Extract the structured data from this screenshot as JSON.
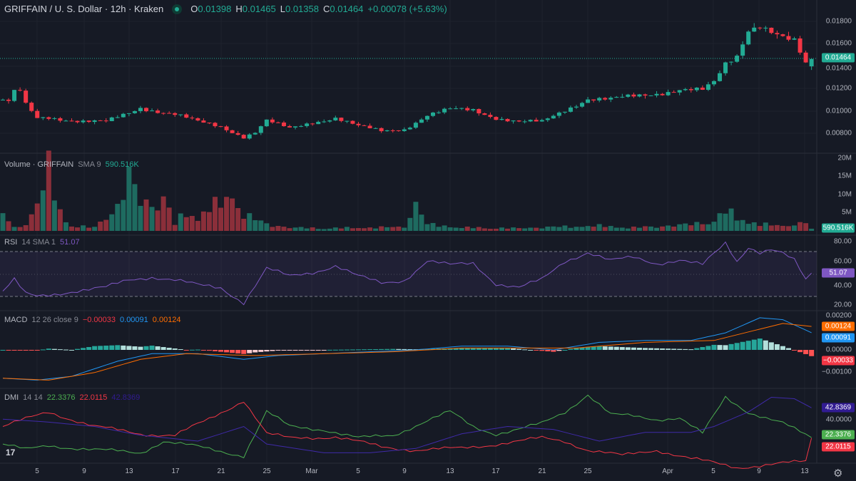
{
  "header": {
    "symbol": "GRIFFAIN / U. S. Dollar · 12h · Kraken",
    "o_label": "O",
    "o": "0.01398",
    "h_label": "H",
    "h": "0.01465",
    "l_label": "L",
    "l": "0.01358",
    "c_label": "C",
    "c": "0.01464",
    "change": "+0.00078 (+5.63%)"
  },
  "volume": {
    "name": "Volume · GRIFFAIN",
    "sma": "SMA 9",
    "value": "590.516K",
    "axis": [
      "20M",
      "15M",
      "10M",
      "5M"
    ]
  },
  "rsi": {
    "name": "RSI",
    "params": "14 SMA 1",
    "value": "51.07",
    "axis": [
      "80.00",
      "60.00",
      "40.00",
      "20.00"
    ]
  },
  "macd": {
    "name": "MACD",
    "params": "12 26 close 9",
    "hist": "−0.00033",
    "macd": "0.00091",
    "signal": "0.00124",
    "axis": [
      "0.00200",
      "0.00000",
      "−0.00100"
    ]
  },
  "dmi": {
    "name": "DMI",
    "params": "14 14",
    "plus": "22.3376",
    "minus": "22.0115",
    "adx": "42.8369",
    "axis": [
      "40.0000"
    ]
  },
  "price_axis": [
    "0.01800",
    "0.01600",
    "0.01400",
    "0.01200",
    "0.01000",
    "0.00800"
  ],
  "current_price": "0.01464",
  "time_labels": [
    "5",
    "9",
    "13",
    "17",
    "21",
    "25",
    "Mar",
    "5",
    "9",
    "13",
    "17",
    "21",
    "25",
    "Apr",
    "5",
    "9",
    "13"
  ],
  "colors": {
    "up": "#22ab94",
    "down": "#f23645",
    "rsi": "#7e57c2",
    "macd": "#2962ff",
    "signal": "#ff6d00",
    "plus": "#4caf50",
    "minus": "#f23645",
    "adx": "#311b92"
  },
  "chart_data": {
    "type": "candlestick",
    "interval": "12h",
    "price_keypoints_day_close": [
      [
        0,
        0.011
      ],
      [
        0.8,
        0.0108
      ],
      [
        1.2,
        0.0125
      ],
      [
        2,
        0.0105
      ],
      [
        3,
        0.0093
      ],
      [
        4,
        0.0094
      ],
      [
        5,
        0.0093
      ],
      [
        7,
        0.0091
      ],
      [
        9,
        0.009
      ],
      [
        11,
        0.0098
      ],
      [
        12,
        0.0103
      ],
      [
        15,
        0.0097
      ],
      [
        17,
        0.009
      ],
      [
        19,
        0.0086
      ],
      [
        21,
        0.0077
      ],
      [
        22,
        0.0081
      ],
      [
        23,
        0.0091
      ],
      [
        25,
        0.0084
      ],
      [
        27,
        0.009
      ],
      [
        29,
        0.0094
      ],
      [
        31,
        0.0086
      ],
      [
        33,
        0.0082
      ],
      [
        35,
        0.0084
      ],
      [
        37,
        0.0096
      ],
      [
        39,
        0.0101
      ],
      [
        41,
        0.0101
      ],
      [
        43,
        0.0094
      ],
      [
        45,
        0.009
      ],
      [
        47,
        0.009
      ],
      [
        49,
        0.0101
      ],
      [
        51,
        0.0111
      ],
      [
        53,
        0.011
      ],
      [
        55,
        0.0113
      ],
      [
        57,
        0.0116
      ],
      [
        59,
        0.0119
      ],
      [
        61,
        0.0118
      ],
      [
        62,
        0.0125
      ],
      [
        63,
        0.0142
      ],
      [
        64,
        0.015
      ],
      [
        65,
        0.0174
      ],
      [
        66,
        0.0177
      ],
      [
        67,
        0.017
      ],
      [
        68,
        0.0164
      ],
      [
        69,
        0.0161
      ],
      [
        70,
        0.0142
      ],
      [
        70.5,
        0.01464
      ]
    ],
    "volume_keypoints_M": [
      [
        0,
        5
      ],
      [
        1,
        1
      ],
      [
        2,
        2
      ],
      [
        3,
        8
      ],
      [
        4,
        18
      ],
      [
        5,
        6
      ],
      [
        6,
        1.5
      ],
      [
        8,
        1
      ],
      [
        9,
        5
      ],
      [
        10,
        7
      ],
      [
        11,
        16
      ],
      [
        12,
        9
      ],
      [
        13,
        8
      ],
      [
        14,
        10
      ],
      [
        15,
        2
      ],
      [
        16,
        6
      ],
      [
        17,
        4
      ],
      [
        18,
        7
      ],
      [
        19,
        8
      ],
      [
        20,
        11
      ],
      [
        21,
        5
      ],
      [
        23,
        2
      ],
      [
        25,
        1
      ],
      [
        28,
        0.8
      ],
      [
        32,
        1
      ],
      [
        35,
        1.2
      ],
      [
        36,
        8
      ],
      [
        37,
        2
      ],
      [
        40,
        1
      ],
      [
        45,
        0.8
      ],
      [
        48,
        1.2
      ],
      [
        52,
        1.5
      ],
      [
        55,
        1
      ],
      [
        58,
        1.5
      ],
      [
        60,
        2
      ],
      [
        62,
        3
      ],
      [
        63,
        6
      ],
      [
        64,
        4
      ],
      [
        66,
        2
      ],
      [
        68,
        1.5
      ],
      [
        70,
        2.5
      ],
      [
        70.5,
        0.6
      ]
    ],
    "rsi_keypoints": [
      [
        0,
        35
      ],
      [
        1,
        45
      ],
      [
        2,
        32
      ],
      [
        3,
        30
      ],
      [
        6,
        35
      ],
      [
        9,
        38
      ],
      [
        11,
        45
      ],
      [
        13,
        48
      ],
      [
        15,
        45
      ],
      [
        17,
        40
      ],
      [
        19,
        38
      ],
      [
        21,
        25
      ],
      [
        23,
        55
      ],
      [
        25,
        48
      ],
      [
        27,
        52
      ],
      [
        29,
        58
      ],
      [
        31,
        48
      ],
      [
        33,
        42
      ],
      [
        35,
        45
      ],
      [
        37,
        62
      ],
      [
        39,
        58
      ],
      [
        41,
        60
      ],
      [
        43,
        42
      ],
      [
        45,
        38
      ],
      [
        47,
        45
      ],
      [
        49,
        62
      ],
      [
        51,
        70
      ],
      [
        53,
        62
      ],
      [
        55,
        65
      ],
      [
        57,
        60
      ],
      [
        59,
        63
      ],
      [
        61,
        58
      ],
      [
        63,
        78
      ],
      [
        64,
        62
      ],
      [
        65,
        75
      ],
      [
        66,
        70
      ],
      [
        67,
        72
      ],
      [
        68,
        68
      ],
      [
        69,
        62
      ],
      [
        70,
        45
      ],
      [
        70.5,
        51
      ]
    ],
    "macd_keypoints": [
      [
        0,
        -0.0015
      ],
      [
        3,
        -0.0016
      ],
      [
        6,
        -0.0014
      ],
      [
        10,
        -0.0006
      ],
      [
        13,
        -0.0002
      ],
      [
        17,
        -0.0002
      ],
      [
        21,
        -0.0005
      ],
      [
        24,
        -0.0003
      ],
      [
        28,
        -0.0002
      ],
      [
        32,
        -0.0001
      ],
      [
        36,
        0.0
      ],
      [
        40,
        0.0002
      ],
      [
        44,
        0.0002
      ],
      [
        48,
        0.0
      ],
      [
        52,
        0.0004
      ],
      [
        56,
        0.0005
      ],
      [
        60,
        0.0005
      ],
      [
        63,
        0.0009
      ],
      [
        66,
        0.0017
      ],
      [
        68,
        0.0016
      ],
      [
        70.5,
        0.00091
      ]
    ],
    "signal_keypoints": [
      [
        0,
        -0.0015
      ],
      [
        4,
        -0.0016
      ],
      [
        8,
        -0.0012
      ],
      [
        12,
        -0.0005
      ],
      [
        16,
        -0.0002
      ],
      [
        22,
        -0.0003
      ],
      [
        28,
        -0.0002
      ],
      [
        34,
        -0.0001
      ],
      [
        40,
        0.0001
      ],
      [
        46,
        0.0001
      ],
      [
        50,
        0.0001
      ],
      [
        56,
        0.0004
      ],
      [
        62,
        0.0005
      ],
      [
        66,
        0.0011
      ],
      [
        68,
        0.0014
      ],
      [
        70.5,
        0.00124
      ]
    ],
    "dmi_plus_keypoints": [
      [
        0,
        18
      ],
      [
        2,
        14
      ],
      [
        4,
        17
      ],
      [
        8,
        14
      ],
      [
        12,
        12
      ],
      [
        14,
        20
      ],
      [
        17,
        16
      ],
      [
        21,
        10
      ],
      [
        23,
        40
      ],
      [
        25,
        30
      ],
      [
        28,
        28
      ],
      [
        31,
        22
      ],
      [
        34,
        24
      ],
      [
        37,
        34
      ],
      [
        39,
        40
      ],
      [
        41,
        30
      ],
      [
        43,
        25
      ],
      [
        45,
        28
      ],
      [
        47,
        32
      ],
      [
        49,
        40
      ],
      [
        51,
        52
      ],
      [
        53,
        38
      ],
      [
        55,
        37
      ],
      [
        57,
        35
      ],
      [
        59,
        36
      ],
      [
        61,
        25
      ],
      [
        63,
        50
      ],
      [
        65,
        40
      ],
      [
        68,
        32
      ],
      [
        70.5,
        22.3
      ]
    ],
    "dmi_minus_keypoints": [
      [
        0,
        30
      ],
      [
        2,
        35
      ],
      [
        4,
        40
      ],
      [
        8,
        30
      ],
      [
        12,
        25
      ],
      [
        15,
        24
      ],
      [
        18,
        35
      ],
      [
        21,
        48
      ],
      [
        23,
        25
      ],
      [
        25,
        22
      ],
      [
        29,
        23
      ],
      [
        33,
        16
      ],
      [
        36,
        14
      ],
      [
        40,
        15
      ],
      [
        43,
        18
      ],
      [
        47,
        22
      ],
      [
        49,
        20
      ],
      [
        51,
        14
      ],
      [
        54,
        10
      ],
      [
        57,
        14
      ],
      [
        60,
        8
      ],
      [
        62,
        5
      ],
      [
        64,
        2
      ],
      [
        67,
        4
      ],
      [
        70,
        6
      ],
      [
        70.5,
        22.0
      ]
    ],
    "dmi_adx_keypoints": [
      [
        0,
        35
      ],
      [
        4,
        33
      ],
      [
        8,
        30
      ],
      [
        12,
        24
      ],
      [
        17,
        20
      ],
      [
        21,
        30
      ],
      [
        23,
        18
      ],
      [
        28,
        12
      ],
      [
        32,
        12
      ],
      [
        36,
        15
      ],
      [
        40,
        25
      ],
      [
        44,
        30
      ],
      [
        48,
        28
      ],
      [
        52,
        20
      ],
      [
        56,
        26
      ],
      [
        60,
        26
      ],
      [
        62,
        30
      ],
      [
        65,
        40
      ],
      [
        67,
        50
      ],
      [
        69,
        49
      ],
      [
        70.5,
        42.8
      ]
    ]
  }
}
